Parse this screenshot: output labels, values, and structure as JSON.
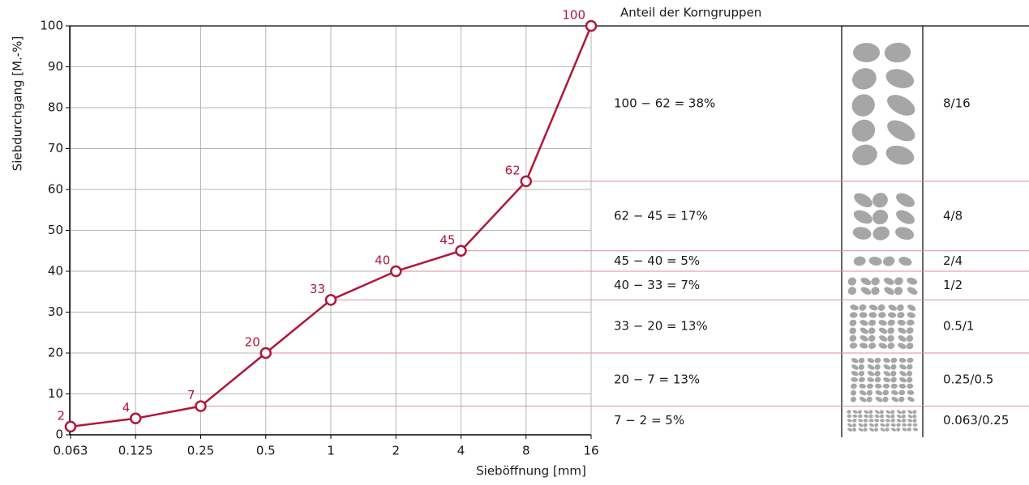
{
  "chart_data": {
    "type": "line",
    "x_label": "Sieböffnung [mm]",
    "y_label": "Siebdurchgang [M.-%]",
    "categories": [
      "0.063",
      "0.125",
      "0.25",
      "0.5",
      "1",
      "2",
      "4",
      "8",
      "16"
    ],
    "series": [
      {
        "color": "#b0173a",
        "values": [
          2,
          4,
          7,
          20,
          33,
          40,
          45,
          62,
          100
        ]
      }
    ],
    "ylim": [
      0,
      100
    ],
    "yticks": [
      0,
      10,
      20,
      30,
      40,
      50,
      60,
      70,
      80,
      90,
      100
    ],
    "grid": true,
    "grain_groups": {
      "title": "Anteil der Korngruppen",
      "rows": [
        {
          "share": "100 − 62 = 38%",
          "group": "8/16"
        },
        {
          "share": "62 − 45 = 17%",
          "group": "4/8"
        },
        {
          "share": "45 − 40 = 5%",
          "group": "2/4"
        },
        {
          "share": "40 − 33 = 7%",
          "group": "1/2"
        },
        {
          "share": "33 − 20 = 13%",
          "group": "0.5/1"
        },
        {
          "share": "20 − 7 = 13%",
          "group": "0.25/0.5"
        },
        {
          "share": "7 − 2 = 5%",
          "group": "0.063/0.25"
        }
      ]
    }
  }
}
